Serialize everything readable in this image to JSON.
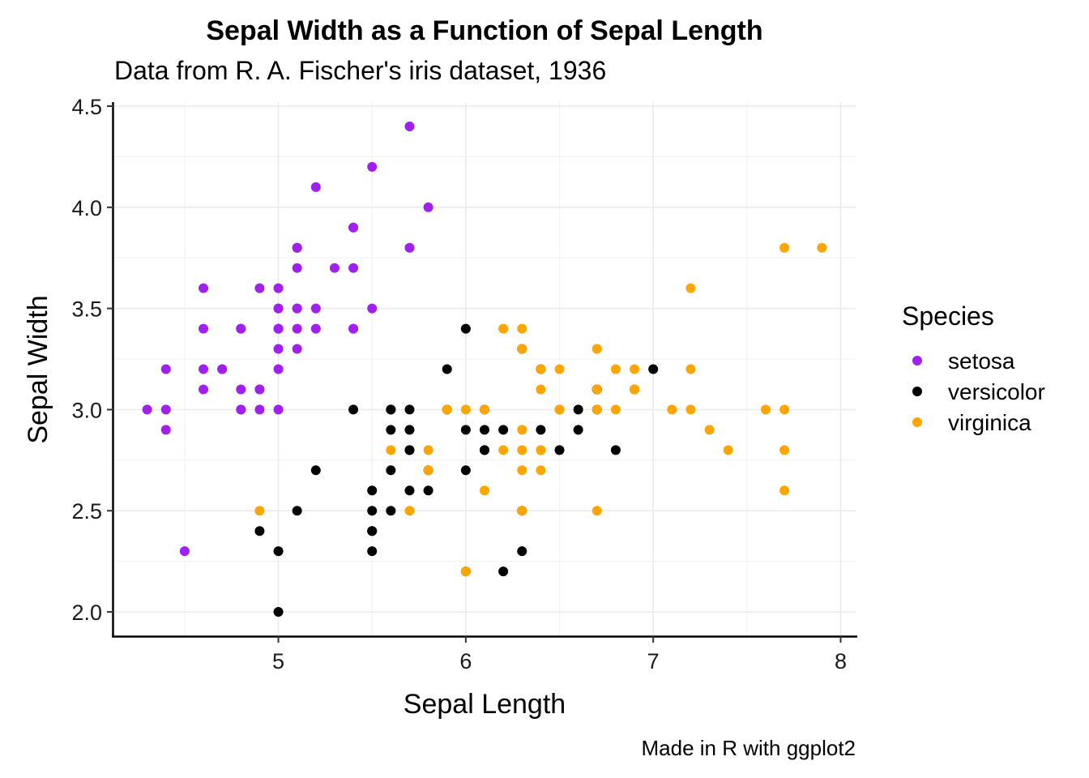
{
  "chart_data": {
    "type": "scatter",
    "title": "Sepal Width as a Function of Sepal Length",
    "subtitle": "Data from R. A. Fischer's iris dataset, 1936",
    "xlabel": "Sepal Length",
    "ylabel": "Sepal Width",
    "caption": "Made in R with ggplot2",
    "xlim": [
      4.12,
      8.08
    ],
    "ylim": [
      1.88,
      4.52
    ],
    "x_ticks": [
      5,
      6,
      7,
      8
    ],
    "x_tick_labels": [
      "5",
      "6",
      "7",
      "8"
    ],
    "y_ticks": [
      2.0,
      2.5,
      3.0,
      3.5,
      4.0,
      4.5
    ],
    "y_tick_labels": [
      "2.0",
      "2.5",
      "3.0",
      "3.5",
      "4.0",
      "4.5"
    ],
    "grid": true,
    "legend": {
      "title": "Species",
      "position": "right"
    },
    "series": [
      {
        "name": "setosa",
        "color": "#A020F0",
        "x": [
          5.1,
          4.9,
          4.7,
          4.6,
          5.0,
          5.4,
          4.6,
          5.0,
          4.4,
          4.9,
          5.4,
          4.8,
          4.8,
          4.3,
          5.8,
          5.7,
          5.4,
          5.1,
          5.7,
          5.1,
          5.4,
          5.1,
          4.6,
          5.1,
          4.8,
          5.0,
          5.0,
          5.2,
          5.2,
          4.7,
          4.8,
          5.4,
          5.2,
          5.5,
          4.9,
          5.0,
          5.5,
          4.9,
          4.4,
          5.1,
          5.0,
          4.5,
          4.4,
          5.0,
          5.1,
          4.8,
          5.1,
          4.6,
          5.3,
          5.0
        ],
        "y": [
          3.5,
          3.0,
          3.2,
          3.1,
          3.6,
          3.9,
          3.4,
          3.4,
          2.9,
          3.1,
          3.7,
          3.4,
          3.0,
          3.0,
          4.0,
          4.4,
          3.9,
          3.5,
          3.8,
          3.8,
          3.4,
          3.7,
          3.6,
          3.3,
          3.4,
          3.0,
          3.4,
          3.5,
          3.4,
          3.2,
          3.1,
          3.4,
          4.1,
          4.2,
          3.1,
          3.2,
          3.5,
          3.6,
          3.0,
          3.4,
          3.5,
          2.3,
          3.2,
          3.5,
          3.8,
          3.0,
          3.8,
          3.2,
          3.7,
          3.3
        ]
      },
      {
        "name": "versicolor",
        "color": "#000000",
        "x": [
          7.0,
          6.4,
          6.9,
          5.5,
          6.5,
          5.7,
          6.3,
          4.9,
          6.6,
          5.2,
          5.0,
          5.9,
          6.0,
          6.1,
          5.6,
          6.7,
          5.6,
          5.8,
          6.2,
          5.6,
          5.9,
          6.1,
          6.3,
          6.1,
          6.4,
          6.6,
          6.8,
          6.7,
          6.0,
          5.7,
          5.5,
          5.5,
          5.8,
          6.0,
          5.4,
          6.0,
          6.7,
          6.3,
          5.6,
          5.5,
          5.5,
          6.1,
          5.8,
          5.0,
          5.6,
          5.7,
          5.7,
          6.2,
          5.1,
          5.7
        ],
        "y": [
          3.2,
          3.2,
          3.1,
          2.3,
          2.8,
          2.8,
          3.3,
          2.4,
          2.9,
          2.7,
          2.0,
          3.0,
          2.2,
          2.9,
          2.9,
          3.1,
          3.0,
          2.7,
          2.2,
          2.5,
          3.2,
          2.8,
          2.5,
          2.8,
          2.9,
          3.0,
          2.8,
          3.0,
          2.9,
          2.6,
          2.4,
          2.4,
          2.7,
          2.7,
          3.0,
          3.4,
          3.1,
          2.3,
          3.0,
          2.5,
          2.6,
          3.0,
          2.6,
          2.3,
          2.7,
          3.0,
          2.9,
          2.9,
          2.5,
          2.8
        ]
      },
      {
        "name": "virginica",
        "color": "#FFA500",
        "x": [
          6.3,
          5.8,
          7.1,
          6.3,
          6.5,
          7.6,
          4.9,
          7.3,
          6.7,
          7.2,
          6.5,
          6.4,
          6.8,
          5.7,
          5.8,
          6.4,
          6.5,
          7.7,
          7.7,
          6.0,
          6.9,
          5.6,
          7.7,
          6.3,
          6.7,
          7.2,
          6.2,
          6.1,
          6.4,
          7.2,
          7.4,
          7.9,
          6.4,
          6.3,
          6.1,
          7.7,
          6.3,
          6.4,
          6.0,
          6.9,
          6.7,
          6.9,
          5.8,
          6.8,
          6.7,
          6.7,
          6.3,
          6.5,
          6.2,
          5.9
        ],
        "y": [
          3.3,
          2.7,
          3.0,
          2.9,
          3.0,
          3.0,
          2.5,
          2.9,
          2.5,
          3.6,
          3.2,
          2.7,
          3.0,
          2.5,
          2.8,
          3.2,
          3.0,
          3.8,
          2.6,
          2.2,
          3.2,
          2.8,
          2.8,
          2.7,
          3.3,
          3.2,
          2.8,
          3.0,
          2.8,
          3.0,
          2.8,
          3.8,
          2.8,
          2.8,
          2.6,
          3.0,
          3.4,
          3.1,
          3.0,
          3.1,
          3.1,
          3.1,
          2.7,
          3.2,
          3.3,
          3.0,
          2.5,
          3.0,
          3.4,
          3.0
        ]
      }
    ]
  }
}
